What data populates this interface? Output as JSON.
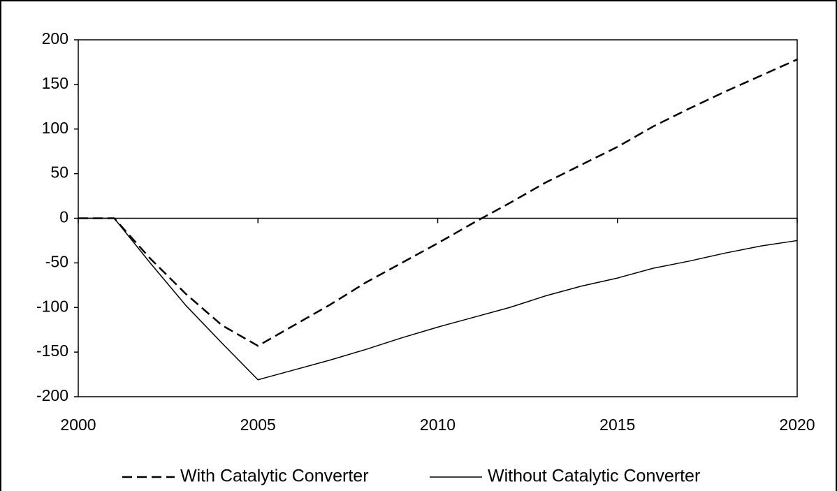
{
  "chart_data": {
    "type": "line",
    "x": [
      2000,
      2001,
      2002,
      2003,
      2004,
      2005,
      2006,
      2007,
      2008,
      2009,
      2010,
      2011,
      2012,
      2013,
      2014,
      2015,
      2016,
      2017,
      2018,
      2019,
      2020
    ],
    "series": [
      {
        "name": "With Catalytic Converter",
        "color": "#000000",
        "dash": true,
        "values": [
          0,
          0,
          -45,
          -85,
          -120,
          -143,
          -120,
          -97,
          -72,
          -50,
          -28,
          -5,
          17,
          40,
          60,
          80,
          103,
          123,
          142,
          160,
          178
        ]
      },
      {
        "name": "Without Catalytic Converter",
        "color": "#000000",
        "dash": false,
        "values": [
          0,
          0,
          -50,
          -98,
          -140,
          -181,
          -170,
          -159,
          -147,
          -134,
          -122,
          -111,
          -100,
          -87,
          -76,
          -67,
          -56,
          -48,
          -39,
          -31,
          -25
        ]
      }
    ],
    "xlim": [
      2000,
      2020
    ],
    "xticks": [
      2000,
      2005,
      2010,
      2015,
      2020
    ],
    "ylim": [
      -200,
      200
    ],
    "yticks": [
      -200,
      -150,
      -100,
      -50,
      0,
      50,
      100,
      150,
      200
    ],
    "legend": "bottom"
  }
}
